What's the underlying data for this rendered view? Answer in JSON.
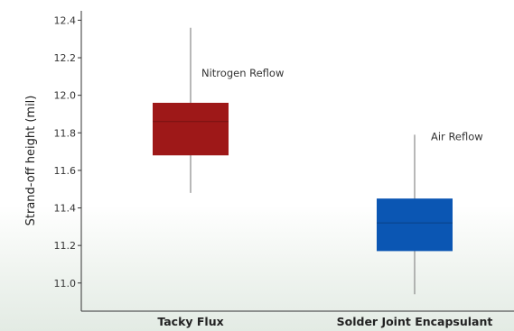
{
  "chart_data": {
    "type": "box",
    "title": "",
    "xlabel": "",
    "ylabel": "Strand-off height (mil)",
    "ylim": [
      10.85,
      12.45
    ],
    "yticks": [
      "11.0",
      "11.2",
      "11.4",
      "11.6",
      "11.8",
      "12.0",
      "12.2",
      "12.4"
    ],
    "grid": false,
    "categories": [
      "Tacky Flux",
      "Solder Joint Encapsulant"
    ],
    "series": [
      {
        "category": "Tacky Flux",
        "annotation": "Nitrogen Reflow",
        "color": "#9e1818",
        "whisker_low": 11.48,
        "q1": 11.68,
        "median": 11.86,
        "q3": 11.96,
        "whisker_high": 12.36
      },
      {
        "category": "Solder Joint Encapsulant",
        "annotation": "Air Reflow",
        "color": "#0b56b3",
        "whisker_low": 10.94,
        "q1": 11.17,
        "median": 11.32,
        "q3": 11.45,
        "whisker_high": 11.79
      }
    ]
  }
}
